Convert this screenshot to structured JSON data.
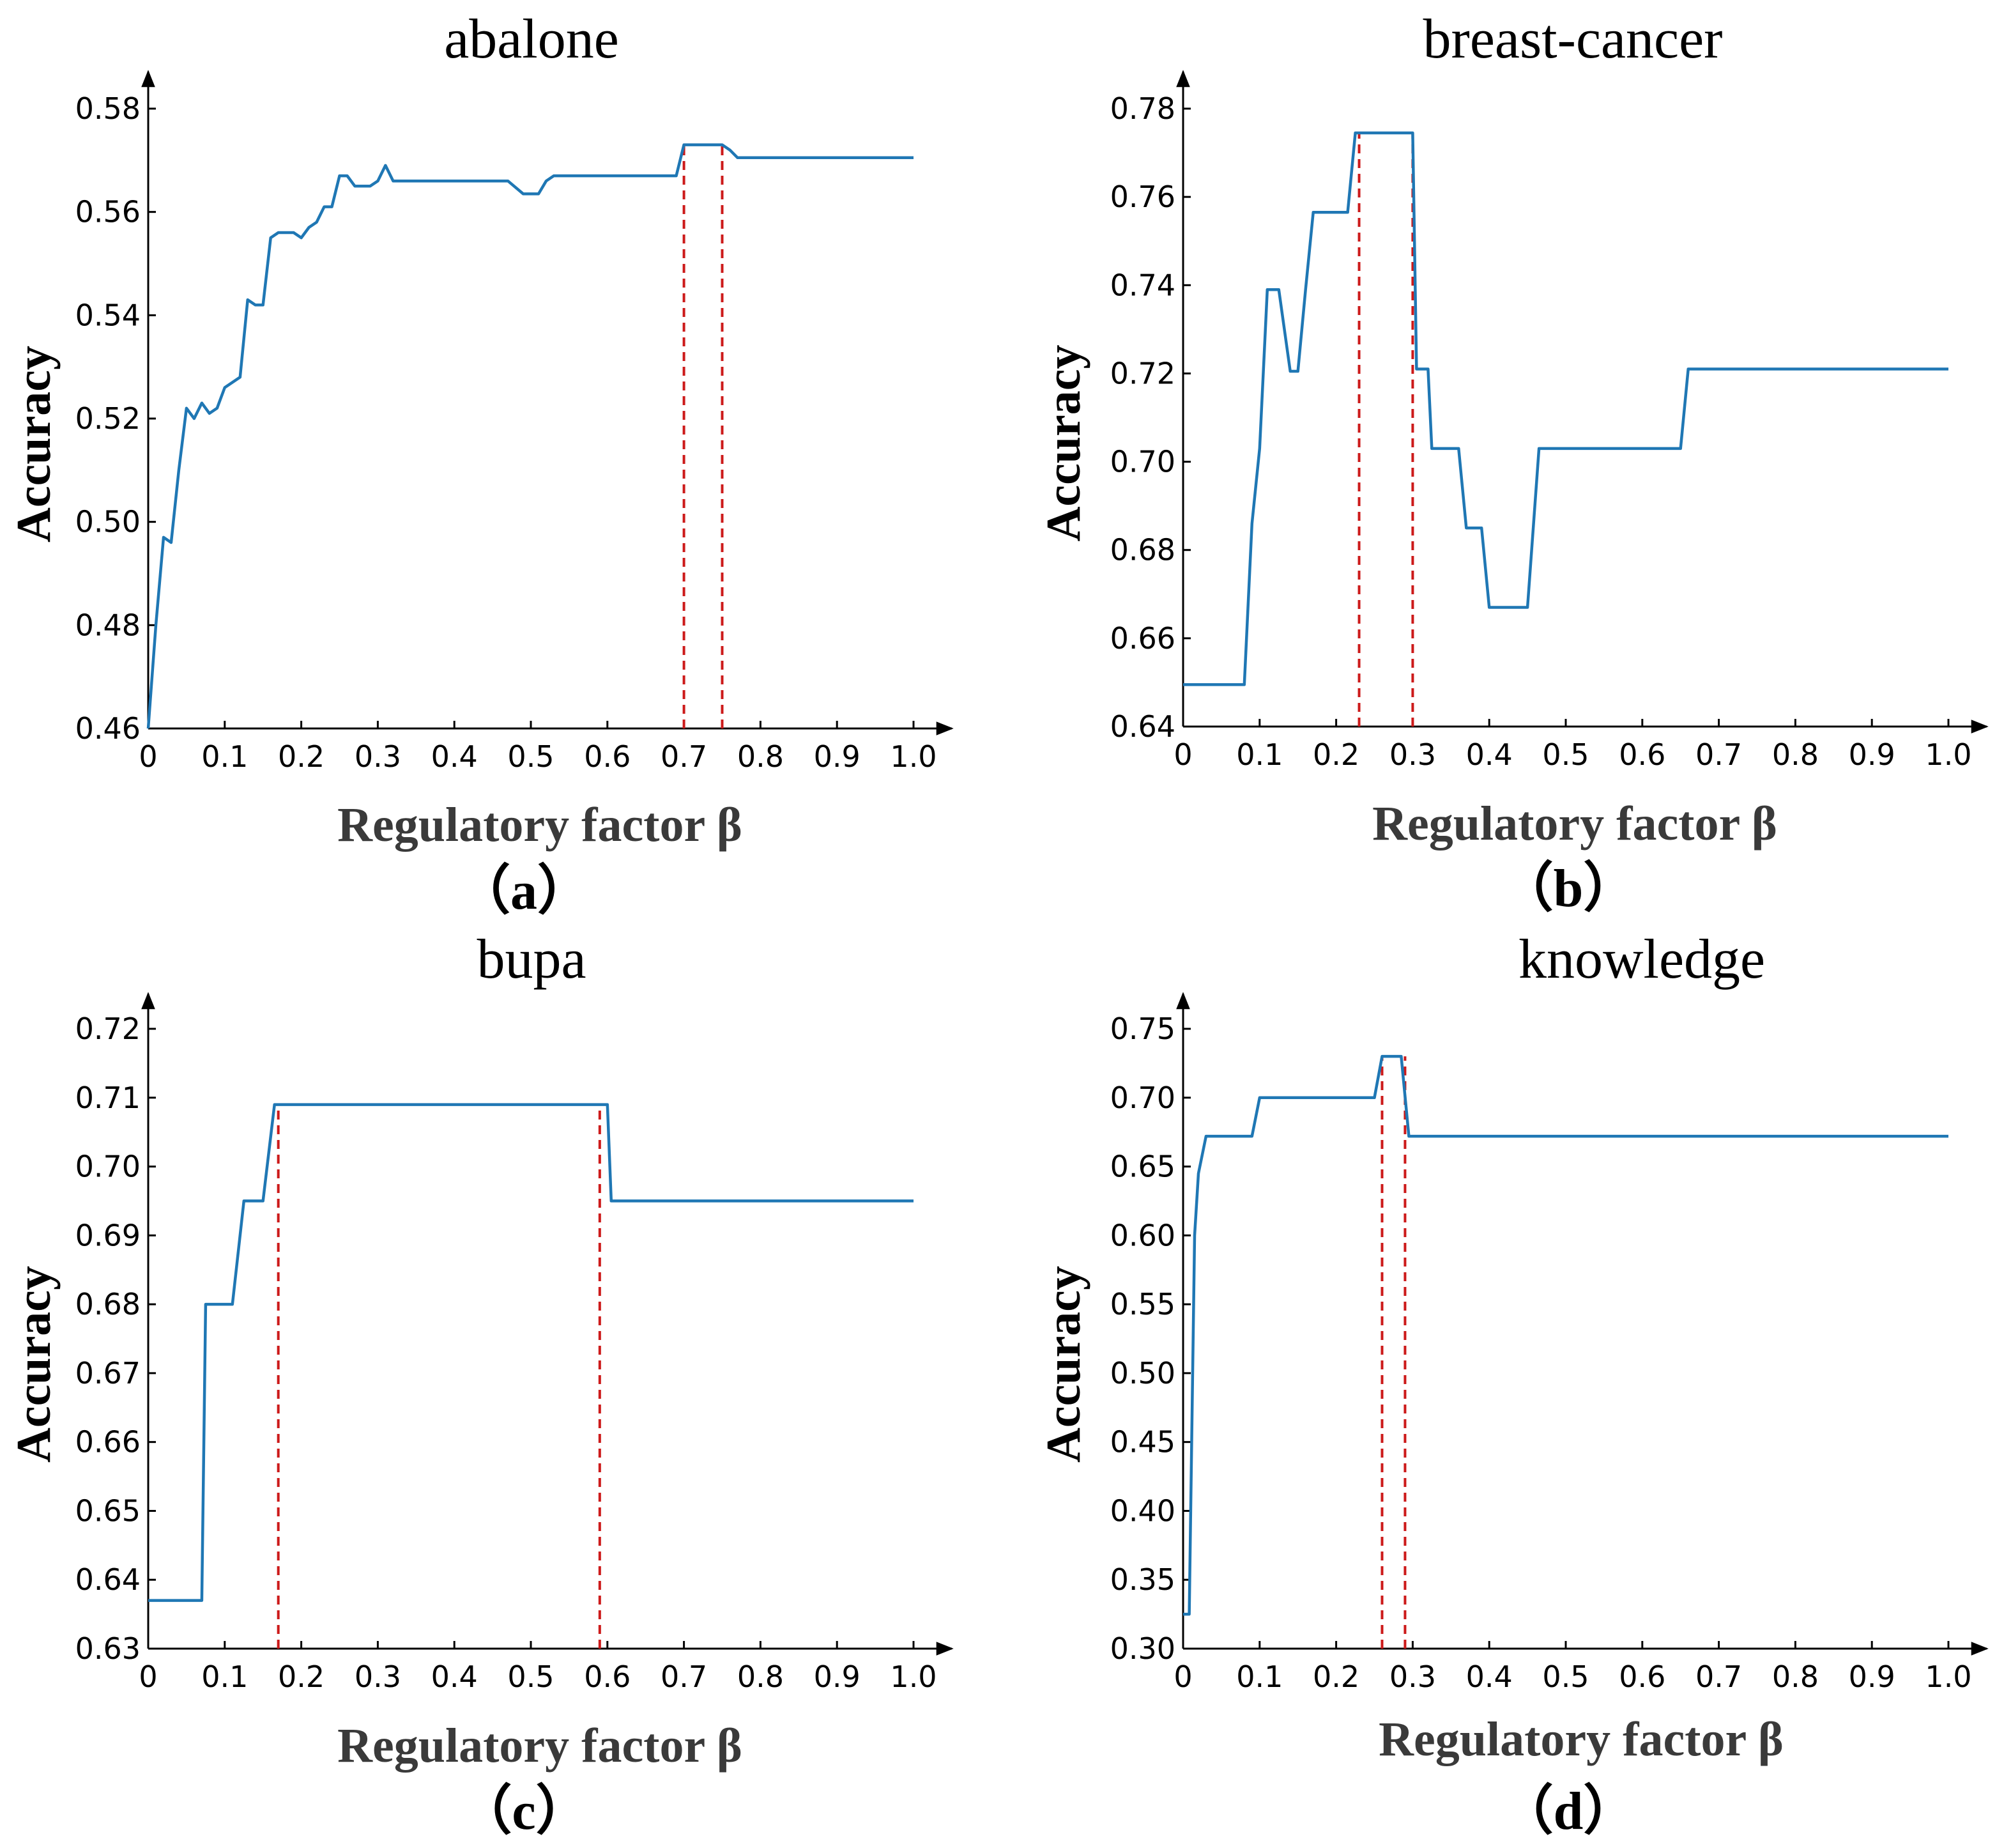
{
  "colors": {
    "line": "#1f77b4",
    "marker": "#cc1a1a",
    "axis": "#000000"
  },
  "chart_data": [
    {
      "type": "line",
      "panel": "（a）",
      "title": "abalone",
      "xlabel": "Regulatory factor β",
      "ylabel": "Accuracy",
      "xlim": [
        0,
        1.0
      ],
      "ylim": [
        0.46,
        0.58
      ],
      "xticks": [
        "0",
        "0.1",
        "0.2",
        "0.3",
        "0.4",
        "0.5",
        "0.6",
        "0.7",
        "0.8",
        "0.9",
        "1.0"
      ],
      "yticks": [
        "0.46",
        "0.48",
        "0.50",
        "0.52",
        "0.54",
        "0.56",
        "0.58"
      ],
      "x": [
        0,
        0.01,
        0.02,
        0.03,
        0.04,
        0.05,
        0.06,
        0.07,
        0.08,
        0.09,
        0.1,
        0.12,
        0.13,
        0.14,
        0.15,
        0.16,
        0.17,
        0.18,
        0.19,
        0.2,
        0.21,
        0.22,
        0.23,
        0.24,
        0.25,
        0.26,
        0.27,
        0.28,
        0.29,
        0.3,
        0.31,
        0.32,
        0.4,
        0.47,
        0.49,
        0.51,
        0.52,
        0.53,
        0.6,
        0.69,
        0.7,
        0.75,
        0.76,
        0.77,
        1.0
      ],
      "y": [
        0.46,
        0.48,
        0.497,
        0.496,
        0.51,
        0.522,
        0.52,
        0.523,
        0.521,
        0.522,
        0.526,
        0.528,
        0.543,
        0.542,
        0.542,
        0.555,
        0.556,
        0.556,
        0.556,
        0.555,
        0.557,
        0.558,
        0.561,
        0.561,
        0.567,
        0.567,
        0.565,
        0.565,
        0.565,
        0.566,
        0.569,
        0.566,
        0.566,
        0.566,
        0.5635,
        0.5635,
        0.566,
        0.567,
        0.567,
        0.567,
        0.573,
        0.573,
        0.572,
        0.5705,
        0.5705
      ],
      "markers": [
        0.7,
        0.75
      ]
    },
    {
      "type": "line",
      "panel": "（b）",
      "title": "breast-cancer",
      "xlabel": "Regulatory factor β",
      "ylabel": "Accuracy",
      "xlim": [
        0,
        1.0
      ],
      "ylim": [
        0.64,
        0.78
      ],
      "xticks": [
        "0",
        "0.1",
        "0.2",
        "0.3",
        "0.4",
        "0.5",
        "0.6",
        "0.7",
        "0.8",
        "0.9",
        "1.0"
      ],
      "yticks": [
        "0.64",
        "0.66",
        "0.68",
        "0.70",
        "0.72",
        "0.74",
        "0.76",
        "0.78"
      ],
      "x": [
        0,
        0.08,
        0.09,
        0.1,
        0.11,
        0.125,
        0.14,
        0.15,
        0.16,
        0.17,
        0.2,
        0.215,
        0.225,
        0.3,
        0.305,
        0.32,
        0.325,
        0.33,
        0.36,
        0.37,
        0.38,
        0.39,
        0.4,
        0.45,
        0.465,
        0.65,
        0.66,
        1.0
      ],
      "y": [
        0.6495,
        0.6495,
        0.686,
        0.703,
        0.739,
        0.739,
        0.7205,
        0.7205,
        0.739,
        0.7565,
        0.7565,
        0.7565,
        0.7745,
        0.7745,
        0.721,
        0.721,
        0.703,
        0.703,
        0.703,
        0.685,
        0.685,
        0.685,
        0.667,
        0.667,
        0.703,
        0.703,
        0.721,
        0.721
      ],
      "markers": [
        0.23,
        0.3
      ]
    },
    {
      "type": "line",
      "panel": "（c）",
      "title": "bupa",
      "xlabel": "Regulatory factor β",
      "ylabel": "Accuracy",
      "xlim": [
        0,
        1.0
      ],
      "ylim": [
        0.63,
        0.72
      ],
      "xticks": [
        "0",
        "0.1",
        "0.2",
        "0.3",
        "0.4",
        "0.5",
        "0.6",
        "0.7",
        "0.8",
        "0.9",
        "1.0"
      ],
      "yticks": [
        "0.63",
        "0.64",
        "0.65",
        "0.66",
        "0.67",
        "0.68",
        "0.69",
        "0.70",
        "0.71",
        "0.72"
      ],
      "x": [
        0,
        0.07,
        0.075,
        0.11,
        0.125,
        0.15,
        0.165,
        0.6,
        0.605,
        1.0
      ],
      "y": [
        0.637,
        0.637,
        0.68,
        0.68,
        0.695,
        0.695,
        0.709,
        0.709,
        0.695,
        0.695
      ],
      "markers": [
        0.17,
        0.59
      ]
    },
    {
      "type": "line",
      "panel": "（d）",
      "title": "knowledge",
      "xlabel": "Regulatory factor β",
      "ylabel": "Accuracy",
      "xlim": [
        0,
        1.0
      ],
      "ylim": [
        0.3,
        0.75
      ],
      "xticks": [
        "0",
        "0.1",
        "0.2",
        "0.3",
        "0.4",
        "0.5",
        "0.6",
        "0.7",
        "0.8",
        "0.9",
        "1.0"
      ],
      "yticks": [
        "0.30",
        "0.35",
        "0.40",
        "0.45",
        "0.50",
        "0.55",
        "0.60",
        "0.65",
        "0.70",
        "0.75"
      ],
      "x": [
        0,
        0.008,
        0.015,
        0.02,
        0.03,
        0.09,
        0.1,
        0.25,
        0.26,
        0.285,
        0.295,
        1.0
      ],
      "y": [
        0.325,
        0.325,
        0.6,
        0.645,
        0.672,
        0.672,
        0.7,
        0.7,
        0.73,
        0.73,
        0.672,
        0.672
      ],
      "markers": [
        0.26,
        0.29
      ]
    }
  ]
}
